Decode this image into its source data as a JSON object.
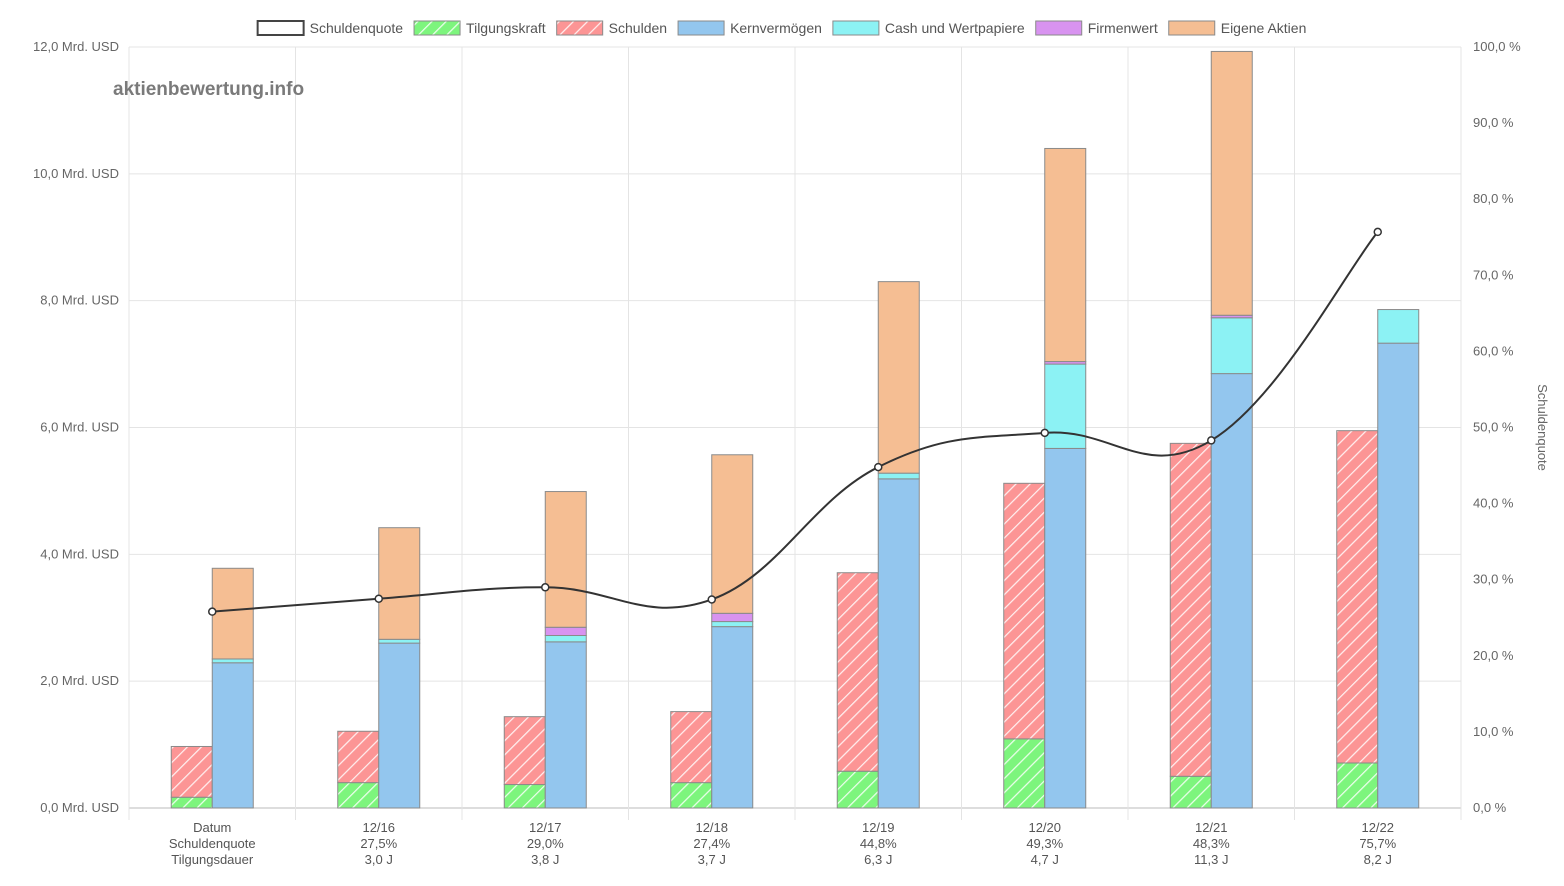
{
  "watermark": "aktienbewertung.info",
  "chart_data": {
    "type": "bar",
    "categories": [
      "Datum",
      "12/16",
      "12/17",
      "12/18",
      "12/19",
      "12/20",
      "12/21",
      "12/22"
    ],
    "category_rows": [
      [
        "Datum",
        "Schuldenquote",
        "Tilgungsdauer"
      ],
      [
        "12/16",
        "27,5%",
        "3,0 J"
      ],
      [
        "12/17",
        "29,0%",
        "3,8 J"
      ],
      [
        "12/18",
        "27,4%",
        "3,7 J"
      ],
      [
        "12/19",
        "44,8%",
        "6,3 J"
      ],
      [
        "12/20",
        "49,3%",
        "4,7 J"
      ],
      [
        "12/21",
        "48,3%",
        "11,3 J"
      ],
      [
        "12/22",
        "75,7%",
        "8,2 J"
      ]
    ],
    "unit": "Mrd. USD",
    "legend_position": "top",
    "grid": true,
    "y_left": {
      "min": 0,
      "max": 12,
      "ticks": [
        "0,0 Mrd. USD",
        "2,0 Mrd. USD",
        "4,0 Mrd. USD",
        "6,0 Mrd. USD",
        "8,0 Mrd. USD",
        "10,0 Mrd. USD",
        "12,0 Mrd. USD"
      ]
    },
    "y_right": {
      "label": "Schuldenquote",
      "min": 0,
      "max": 100,
      "ticks": [
        "0,0 %",
        "10,0 %",
        "20,0 %",
        "30,0 %",
        "40,0 %",
        "50,0 %",
        "60,0 %",
        "70,0 %",
        "80,0 %",
        "90,0 %",
        "100,0 %"
      ]
    },
    "series": [
      {
        "name": "Schuldenquote",
        "kind": "line",
        "axis": "right",
        "color": "#333333",
        "values": [
          25.8,
          27.5,
          29.0,
          27.4,
          44.8,
          49.3,
          48.3,
          75.7
        ]
      },
      {
        "name": "Tilgungskraft",
        "kind": "bar",
        "stack": "liabilities",
        "color": "#7df57d",
        "hatched": true,
        "values": [
          0.17,
          0.4,
          0.37,
          0.4,
          0.58,
          1.09,
          0.5,
          0.71
        ]
      },
      {
        "name": "Schulden",
        "kind": "bar",
        "stack": "liabilities",
        "color": "#fc9595",
        "hatched": true,
        "values": [
          0.8,
          0.81,
          1.07,
          1.12,
          3.13,
          4.03,
          5.25,
          5.24
        ]
      },
      {
        "name": "Kernvermögen",
        "kind": "bar",
        "stack": "assets",
        "color": "#93c6ee",
        "hatched": false,
        "values": [
          2.29,
          2.6,
          2.62,
          2.86,
          5.19,
          5.67,
          6.85,
          7.33
        ]
      },
      {
        "name": "Cash und Wertpapiere",
        "kind": "bar",
        "stack": "assets",
        "color": "#8cf2f4",
        "hatched": false,
        "values": [
          0.06,
          0.06,
          0.1,
          0.08,
          0.09,
          1.33,
          0.88,
          0.53
        ]
      },
      {
        "name": "Firmenwert",
        "kind": "bar",
        "stack": "assets",
        "color": "#d893f0",
        "hatched": false,
        "values": [
          0.0,
          0.0,
          0.13,
          0.13,
          0.0,
          0.04,
          0.04,
          0.0
        ]
      },
      {
        "name": "Eigene Aktien",
        "kind": "bar",
        "stack": "assets",
        "color": "#f5be93",
        "hatched": false,
        "values": [
          1.43,
          1.76,
          2.14,
          2.5,
          3.02,
          3.36,
          4.16,
          0.0
        ]
      }
    ]
  }
}
